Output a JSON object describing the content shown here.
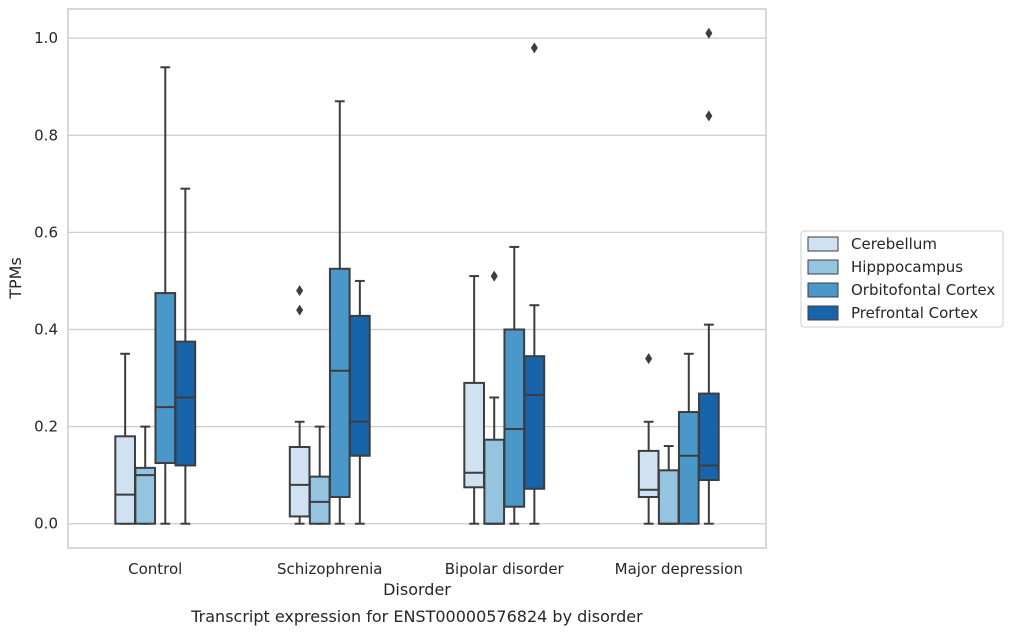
{
  "chart_data": {
    "type": "box",
    "caption": "Transcript expression for ENST00000576824 by disorder",
    "xlabel": "Disorder",
    "ylabel": "TPMs",
    "ylim": [
      -0.05,
      1.06
    ],
    "yticks": [
      0.0,
      0.2,
      0.4,
      0.6,
      0.8,
      1.0
    ],
    "ytick_labels": [
      "0.0",
      "0.2",
      "0.4",
      "0.6",
      "0.8",
      "1.0"
    ],
    "grid": "horizontal",
    "legend_placement": "right",
    "categories": [
      "Control",
      "Schizophrenia",
      "Bipolar disorder",
      "Major depression"
    ],
    "series": [
      {
        "name": "Cerebellum",
        "color": "#d0e1f2",
        "boxes": [
          {
            "whislo": 0.0,
            "q1": 0.0,
            "med": 0.06,
            "q3": 0.18,
            "whishi": 0.35,
            "fliers": []
          },
          {
            "whislo": 0.0,
            "q1": 0.015,
            "med": 0.08,
            "q3": 0.158,
            "whishi": 0.21,
            "fliers": [
              0.44,
              0.48
            ]
          },
          {
            "whislo": 0.0,
            "q1": 0.075,
            "med": 0.105,
            "q3": 0.29,
            "whishi": 0.51,
            "fliers": []
          },
          {
            "whislo": 0.0,
            "q1": 0.055,
            "med": 0.07,
            "q3": 0.15,
            "whishi": 0.21,
            "fliers": [
              0.34
            ]
          }
        ]
      },
      {
        "name": "Hipppocampus",
        "color": "#94c4df",
        "boxes": [
          {
            "whislo": 0.0,
            "q1": 0.0,
            "med": 0.1,
            "q3": 0.115,
            "whishi": 0.2,
            "fliers": []
          },
          {
            "whislo": 0.0,
            "q1": 0.0,
            "med": 0.045,
            "q3": 0.097,
            "whishi": 0.2,
            "fliers": []
          },
          {
            "whislo": 0.0,
            "q1": 0.0,
            "med": 0.0,
            "q3": 0.173,
            "whishi": 0.26,
            "fliers": [
              0.51
            ]
          },
          {
            "whislo": 0.0,
            "q1": 0.0,
            "med": 0.0,
            "q3": 0.11,
            "whishi": 0.16,
            "fliers": []
          }
        ]
      },
      {
        "name": "Orbitofontal Cortex",
        "color": "#4a98c9",
        "boxes": [
          {
            "whislo": 0.0,
            "q1": 0.125,
            "med": 0.24,
            "q3": 0.475,
            "whishi": 0.94,
            "fliers": []
          },
          {
            "whislo": 0.0,
            "q1": 0.055,
            "med": 0.315,
            "q3": 0.525,
            "whishi": 0.87,
            "fliers": []
          },
          {
            "whislo": 0.0,
            "q1": 0.035,
            "med": 0.195,
            "q3": 0.4,
            "whishi": 0.57,
            "fliers": []
          },
          {
            "whislo": 0.0,
            "q1": 0.0,
            "med": 0.14,
            "q3": 0.23,
            "whishi": 0.35,
            "fliers": []
          }
        ]
      },
      {
        "name": "Prefrontal Cortex",
        "color": "#1764ab",
        "boxes": [
          {
            "whislo": 0.0,
            "q1": 0.12,
            "med": 0.26,
            "q3": 0.375,
            "whishi": 0.69,
            "fliers": []
          },
          {
            "whislo": 0.0,
            "q1": 0.14,
            "med": 0.21,
            "q3": 0.428,
            "whishi": 0.5,
            "fliers": []
          },
          {
            "whislo": 0.0,
            "q1": 0.072,
            "med": 0.265,
            "q3": 0.345,
            "whishi": 0.45,
            "fliers": [
              0.98
            ]
          },
          {
            "whislo": 0.0,
            "q1": 0.09,
            "med": 0.12,
            "q3": 0.268,
            "whishi": 0.41,
            "fliers": [
              0.84,
              1.01
            ]
          }
        ]
      }
    ]
  }
}
